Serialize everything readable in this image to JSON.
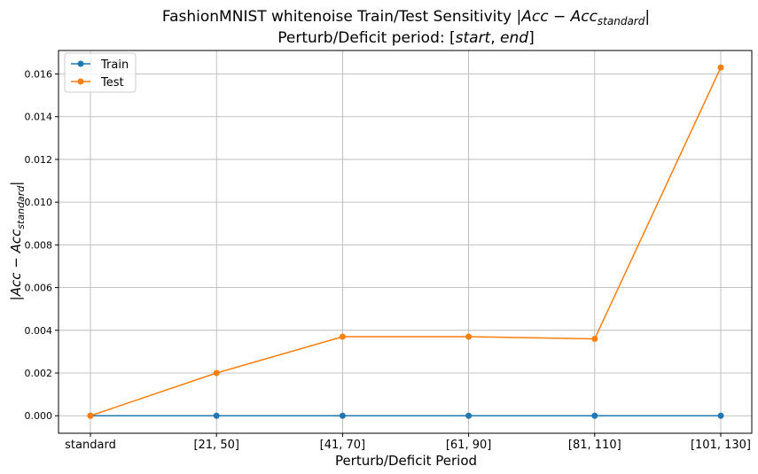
{
  "chart_data": {
    "type": "line",
    "title": {
      "line1_prefix": "FashionMNIST whitenoise Train/Test Sensitivity |",
      "line1_math_main": "Acc − Acc",
      "line1_math_sub": "standard",
      "line1_suffix": "|",
      "line2_prefix": "Perturb/Deficit period: [",
      "line2_math1": "start",
      "line2_sep": ", ",
      "line2_math2": "end",
      "line2_suffix": "]"
    },
    "xlabel": "Perturb/Deficit Period",
    "ylabel": {
      "prefix": "|",
      "math_main": "Acc − Acc",
      "math_sub": "standard",
      "suffix": "|"
    },
    "categories": [
      "standard",
      "[21, 50]",
      "[41, 70]",
      "[61, 90]",
      "[81, 110]",
      "[101, 130]"
    ],
    "ylim": [
      -0.00082,
      0.0171
    ],
    "yticks": [
      {
        "v": 0.0,
        "label": "0.000"
      },
      {
        "v": 0.002,
        "label": "0.002"
      },
      {
        "v": 0.004,
        "label": "0.004"
      },
      {
        "v": 0.006,
        "label": "0.006"
      },
      {
        "v": 0.008,
        "label": "0.008"
      },
      {
        "v": 0.01,
        "label": "0.010"
      },
      {
        "v": 0.012,
        "label": "0.012"
      },
      {
        "v": 0.014,
        "label": "0.014"
      },
      {
        "v": 0.016,
        "label": "0.016"
      }
    ],
    "grid": true,
    "legend_position": "top-left",
    "series": [
      {
        "name": "Train",
        "color": "#1f77b4",
        "values": [
          0.0,
          0.0,
          0.0,
          0.0,
          0.0,
          0.0
        ]
      },
      {
        "name": "Test",
        "color": "#ff7f0e",
        "values": [
          0.0,
          0.002,
          0.0037,
          0.0037,
          0.0036,
          0.0163
        ]
      }
    ]
  }
}
